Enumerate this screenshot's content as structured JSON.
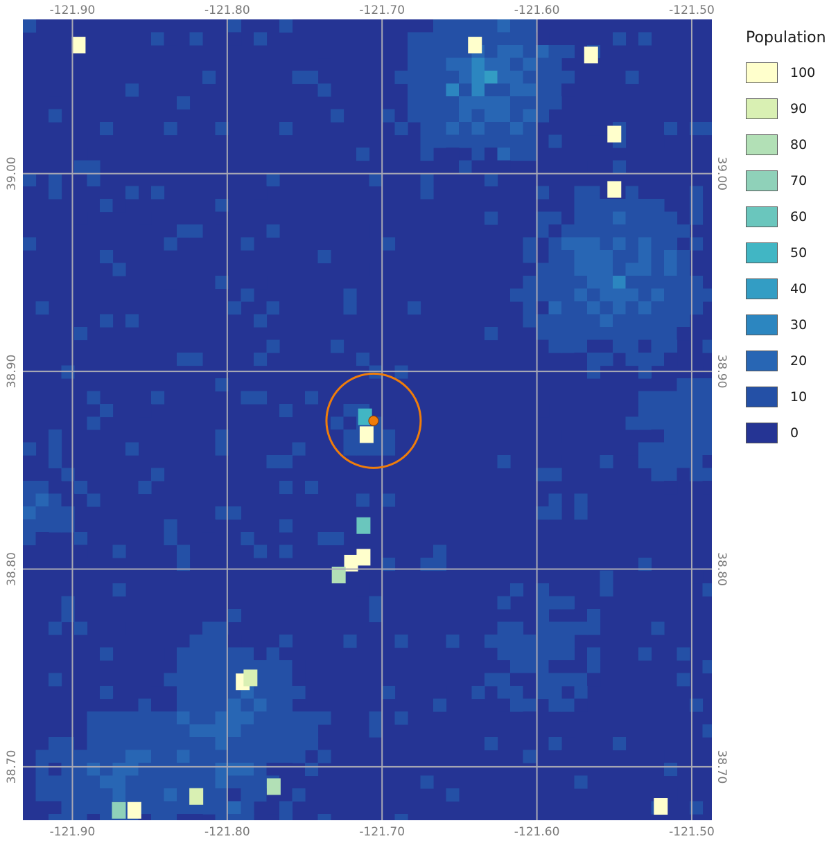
{
  "legend": {
    "title": "Population",
    "items": [
      {
        "label": "100",
        "color": "#ffffcc"
      },
      {
        "label": "90",
        "color": "#d9f0b3"
      },
      {
        "label": "80",
        "color": "#b2e0b6"
      },
      {
        "label": "70",
        "color": "#8fd1b9"
      },
      {
        "label": "60",
        "color": "#6ac6bd"
      },
      {
        "label": "50",
        "color": "#41b6c4"
      },
      {
        "label": "40",
        "color": "#339dc4"
      },
      {
        "label": "30",
        "color": "#2c86c0"
      },
      {
        "label": "20",
        "color": "#2866b4"
      },
      {
        "label": "10",
        "color": "#2450a6"
      },
      {
        "label": "0",
        "color": "#253494"
      }
    ]
  },
  "axes": {
    "lon_ticks": [
      "-121.90",
      "-121.80",
      "-121.70",
      "-121.60",
      "-121.50"
    ],
    "lat_ticks": [
      "39.00",
      "38.90",
      "38.80",
      "38.70"
    ]
  },
  "chart_data": {
    "type": "heatmap",
    "title": "",
    "legend_title": "Population",
    "lon_range": [
      -121.932,
      -121.487
    ],
    "lat_range": [
      38.673,
      39.078
    ],
    "lon_ticks": [
      -121.9,
      -121.8,
      -121.7,
      -121.6,
      -121.5
    ],
    "lat_ticks": [
      39.0,
      38.9,
      38.8,
      38.7
    ],
    "grid": true,
    "colorbar_values": [
      100,
      90,
      80,
      70,
      60,
      50,
      40,
      30,
      20,
      10,
      0
    ],
    "marker": {
      "lon": -121.7055,
      "lat": 38.875,
      "color": "#f07d0a",
      "buffer_circle": true
    },
    "high_population_cells": [
      {
        "lon": -121.896,
        "lat": 39.065,
        "value": 100
      },
      {
        "lon": -121.71,
        "lat": 38.868,
        "value": 100
      },
      {
        "lon": -121.711,
        "lat": 38.877,
        "value": 50
      },
      {
        "lon": -121.712,
        "lat": 38.822,
        "value": 60
      },
      {
        "lon": -121.712,
        "lat": 38.806,
        "value": 100
      },
      {
        "lon": -121.72,
        "lat": 38.803,
        "value": 100
      },
      {
        "lon": -121.728,
        "lat": 38.797,
        "value": 80
      },
      {
        "lon": -121.79,
        "lat": 38.743,
        "value": 100
      },
      {
        "lon": -121.785,
        "lat": 38.745,
        "value": 90
      },
      {
        "lon": -121.55,
        "lat": 39.02,
        "value": 100
      },
      {
        "lon": -121.55,
        "lat": 38.992,
        "value": 100
      },
      {
        "lon": -121.565,
        "lat": 39.06,
        "value": 100
      },
      {
        "lon": -121.64,
        "lat": 39.065,
        "value": 100
      },
      {
        "lon": -121.82,
        "lat": 38.685,
        "value": 90
      },
      {
        "lon": -121.77,
        "lat": 38.69,
        "value": 80
      },
      {
        "lon": -121.86,
        "lat": 38.678,
        "value": 100
      },
      {
        "lon": -121.87,
        "lat": 38.678,
        "value": 70
      },
      {
        "lon": -121.52,
        "lat": 38.68,
        "value": 100
      }
    ]
  }
}
